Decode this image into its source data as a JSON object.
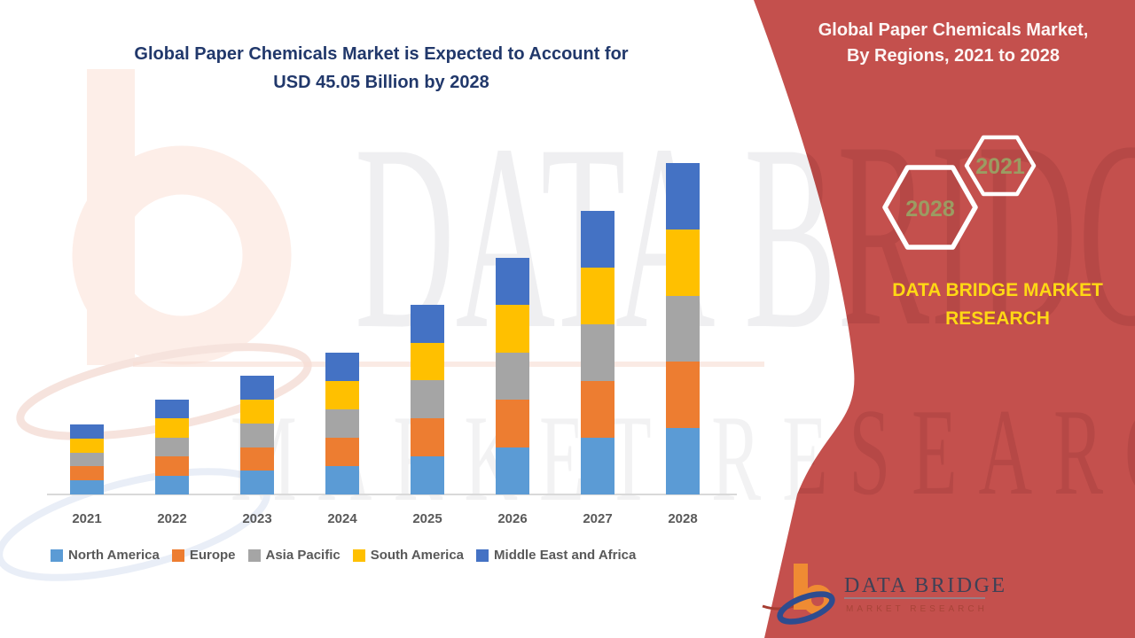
{
  "left_title": {
    "line1": "Global Paper Chemicals Market is Expected to Account for",
    "line2": "USD 45.05 Billion by 2028"
  },
  "right_panel": {
    "bg_color": "#c4504d",
    "title_line1": "Global Paper Chemicals Market,",
    "title_line2": "By Regions, 2021 to 2028",
    "hex_year_small": "2021",
    "hex_year_large": "2028",
    "brand_line1": "DATA BRIDGE MARKET",
    "brand_line2": "RESEARCH",
    "brand_color": "#ffd814",
    "hex_text_color": "#9b9c62"
  },
  "watermark": {
    "row1": "DATA BRIDGE",
    "row2": "MARKET RESEARCH"
  },
  "logo": {
    "title": "DATA BRIDGE",
    "subtitle": "MARKET RESEARCH",
    "orange": "#ef8b33",
    "navy": "#2e4c8f",
    "title_color": "#3e4156",
    "subtitle_color": "#a84438"
  },
  "chart_data": {
    "type": "bar",
    "stacked": true,
    "title": "Global Paper Chemicals Market is Expected to Account for USD 45.05 Billion by 2028",
    "unit": "USD Billion",
    "categories": [
      "2021",
      "2022",
      "2023",
      "2024",
      "2025",
      "2026",
      "2027",
      "2028"
    ],
    "totals": [
      9.5,
      12.9,
      16.1,
      19.3,
      25.8,
      32.2,
      38.5,
      45.05
    ],
    "series": [
      {
        "name": "North America",
        "color": "#5b9bd5",
        "values": [
          1.9,
          2.58,
          3.22,
          3.86,
          5.16,
          6.44,
          7.7,
          9.01
        ]
      },
      {
        "name": "Europe",
        "color": "#ed7d31",
        "values": [
          1.9,
          2.58,
          3.22,
          3.86,
          5.16,
          6.44,
          7.7,
          9.01
        ]
      },
      {
        "name": "Asia Pacific",
        "color": "#a5a5a5",
        "values": [
          1.9,
          2.58,
          3.22,
          3.86,
          5.16,
          6.44,
          7.7,
          9.01
        ]
      },
      {
        "name": "South America",
        "color": "#ffc000",
        "values": [
          1.9,
          2.58,
          3.22,
          3.86,
          5.16,
          6.44,
          7.7,
          9.01
        ]
      },
      {
        "name": "Middle East and Africa",
        "color": "#4472c4",
        "values": [
          1.9,
          2.58,
          3.22,
          3.86,
          5.16,
          6.44,
          7.7,
          9.01
        ]
      }
    ],
    "ylim": [
      0,
      46
    ],
    "gridlines": false,
    "legend_position": "bottom",
    "axis_text_color": "#595959"
  }
}
